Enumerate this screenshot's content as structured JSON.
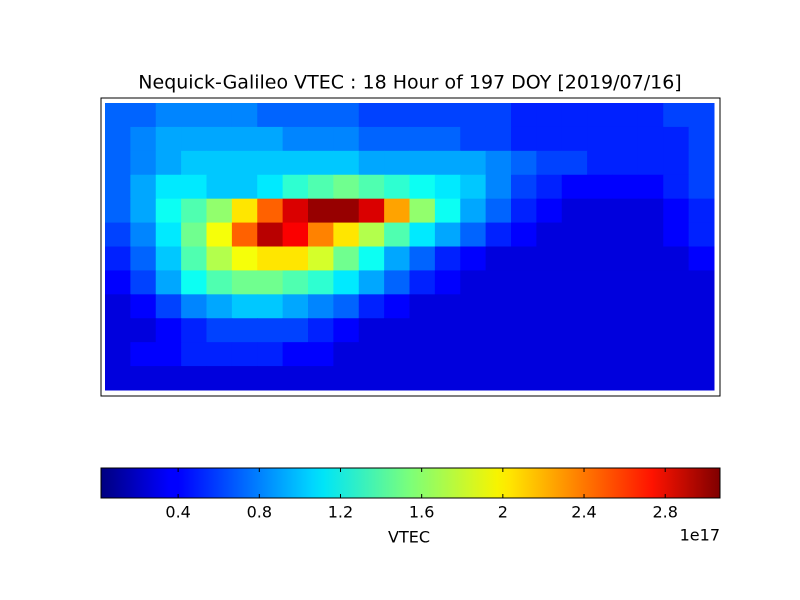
{
  "chart_data": {
    "type": "heatmap",
    "title": "Nequick-Galileo VTEC : 18 Hour of 197 DOY [2019/07/16]",
    "colormap": "jet",
    "grid": [
      [
        0.7,
        0.7,
        0.8,
        0.8,
        0.8,
        0.8,
        0.7,
        0.7,
        0.7,
        0.7,
        0.6,
        0.6,
        0.6,
        0.6,
        0.6,
        0.6,
        0.5,
        0.5,
        0.5,
        0.5,
        0.5,
        0.5,
        0.6,
        0.6
      ],
      [
        0.7,
        0.8,
        0.9,
        0.9,
        0.9,
        0.9,
        0.9,
        0.8,
        0.8,
        0.8,
        0.7,
        0.7,
        0.7,
        0.7,
        0.6,
        0.6,
        0.5,
        0.5,
        0.5,
        0.5,
        0.5,
        0.5,
        0.5,
        0.6
      ],
      [
        0.7,
        0.8,
        0.9,
        1.0,
        1.0,
        1.0,
        1.0,
        1.0,
        1.0,
        1.0,
        0.9,
        0.9,
        0.9,
        0.9,
        0.9,
        0.8,
        0.7,
        0.6,
        0.6,
        0.5,
        0.5,
        0.5,
        0.5,
        0.6
      ],
      [
        0.7,
        0.9,
        1.1,
        1.1,
        1.0,
        1.0,
        1.1,
        1.3,
        1.4,
        1.5,
        1.4,
        1.3,
        1.2,
        1.1,
        1.0,
        0.8,
        0.6,
        0.5,
        0.4,
        0.4,
        0.4,
        0.4,
        0.5,
        0.6
      ],
      [
        0.7,
        0.9,
        1.2,
        1.4,
        1.6,
        2.0,
        2.4,
        2.8,
        3.0,
        3.0,
        2.8,
        2.2,
        1.6,
        1.2,
        0.9,
        0.7,
        0.5,
        0.4,
        0.3,
        0.3,
        0.3,
        0.3,
        0.4,
        0.5
      ],
      [
        0.6,
        0.8,
        1.1,
        1.5,
        1.9,
        2.4,
        2.9,
        2.7,
        2.3,
        2.0,
        1.7,
        1.4,
        1.1,
        0.9,
        0.7,
        0.5,
        0.4,
        0.3,
        0.3,
        0.3,
        0.3,
        0.3,
        0.4,
        0.5
      ],
      [
        0.5,
        0.7,
        1.0,
        1.4,
        1.7,
        1.9,
        2.0,
        2.0,
        1.8,
        1.5,
        1.2,
        0.9,
        0.7,
        0.5,
        0.4,
        0.3,
        0.3,
        0.3,
        0.3,
        0.3,
        0.3,
        0.3,
        0.3,
        0.4
      ],
      [
        0.4,
        0.6,
        0.9,
        1.2,
        1.4,
        1.5,
        1.5,
        1.4,
        1.3,
        1.1,
        0.9,
        0.7,
        0.5,
        0.4,
        0.3,
        0.3,
        0.3,
        0.3,
        0.3,
        0.3,
        0.3,
        0.3,
        0.3,
        0.3
      ],
      [
        0.3,
        0.4,
        0.6,
        0.8,
        0.9,
        1.0,
        1.0,
        0.9,
        0.8,
        0.7,
        0.5,
        0.4,
        0.3,
        0.3,
        0.3,
        0.3,
        0.3,
        0.3,
        0.3,
        0.3,
        0.3,
        0.3,
        0.3,
        0.3
      ],
      [
        0.3,
        0.3,
        0.4,
        0.5,
        0.6,
        0.6,
        0.6,
        0.6,
        0.5,
        0.4,
        0.3,
        0.3,
        0.3,
        0.3,
        0.3,
        0.3,
        0.3,
        0.3,
        0.3,
        0.3,
        0.3,
        0.3,
        0.3,
        0.3
      ],
      [
        0.3,
        0.4,
        0.4,
        0.5,
        0.5,
        0.5,
        0.5,
        0.4,
        0.4,
        0.3,
        0.3,
        0.3,
        0.3,
        0.3,
        0.3,
        0.3,
        0.3,
        0.3,
        0.3,
        0.3,
        0.3,
        0.3,
        0.3,
        0.3
      ],
      [
        0.3,
        0.3,
        0.3,
        0.3,
        0.3,
        0.3,
        0.3,
        0.3,
        0.3,
        0.3,
        0.3,
        0.3,
        0.3,
        0.3,
        0.3,
        0.3,
        0.3,
        0.3,
        0.3,
        0.3,
        0.3,
        0.3,
        0.3,
        0.3
      ]
    ],
    "colorbar": {
      "label": "VTEC",
      "offset_label": "1e17",
      "lim": [
        0.02,
        3.07
      ],
      "ticks": [
        0.4,
        0.8,
        1.2,
        1.6,
        2.0,
        2.4,
        2.8
      ]
    }
  }
}
